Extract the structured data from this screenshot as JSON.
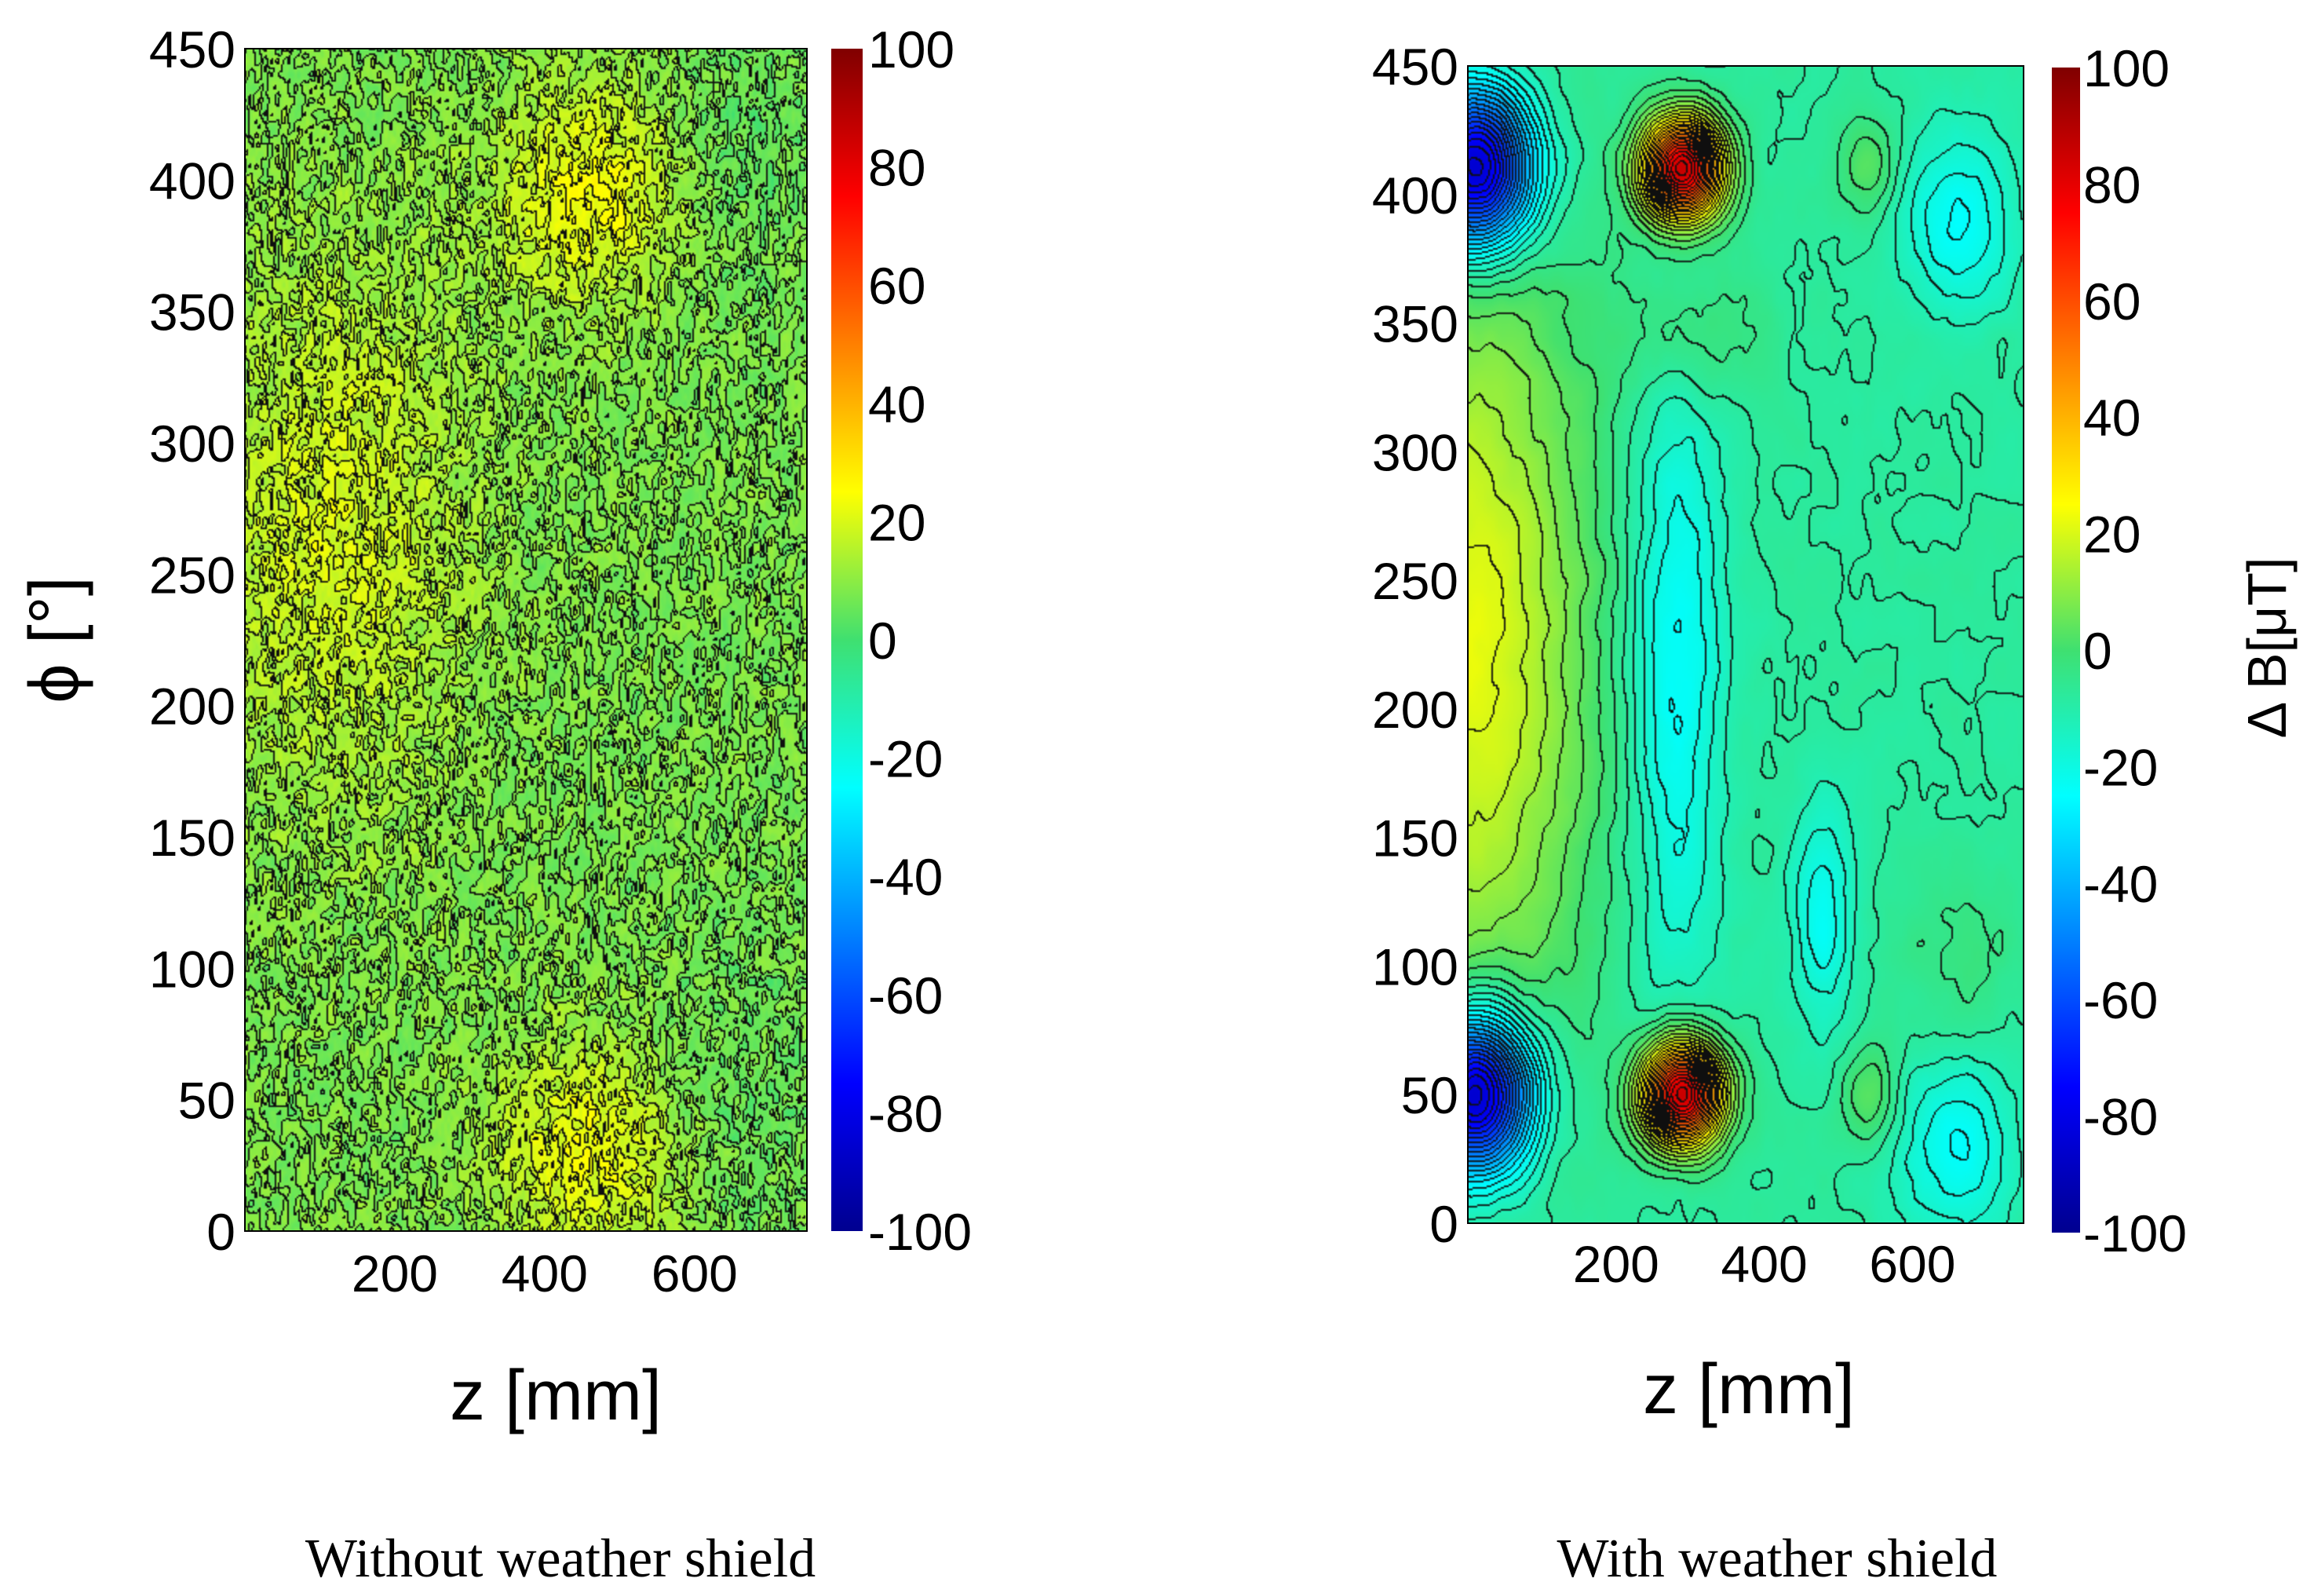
{
  "figure": {
    "captions": [
      "Without weather shield",
      "With weather shield"
    ]
  },
  "chart_data": [
    {
      "type": "heatmap",
      "title": "",
      "caption": "Without weather shield",
      "xlabel": "z [mm]",
      "ylabel": "ϕ [°]",
      "xlim": [
        0,
        750
      ],
      "ylim": [
        0,
        450
      ],
      "xticks": [
        200,
        400,
        600
      ],
      "yticks": [
        0,
        50,
        100,
        150,
        200,
        250,
        300,
        350,
        400,
        450
      ],
      "colorbar": {
        "label": "",
        "range": [
          -100,
          100
        ],
        "ticks": [
          100,
          80,
          60,
          40,
          20,
          0,
          -20,
          -40,
          -60,
          -80,
          -100
        ]
      },
      "base_value": 8,
      "noise": "dense",
      "features": [
        {
          "z": 460,
          "phi": 395,
          "value": 16,
          "sz": 90,
          "sphi": 30
        },
        {
          "z": 460,
          "phi": 30,
          "value": 15,
          "sz": 90,
          "sphi": 30
        },
        {
          "z": 120,
          "phi": 270,
          "value": 12,
          "sz": 120,
          "sphi": 70
        },
        {
          "z": 650,
          "phi": 410,
          "value": -4,
          "sz": 70,
          "sphi": 40
        },
        {
          "z": 650,
          "phi": 50,
          "value": -4,
          "sz": 70,
          "sphi": 40
        }
      ]
    },
    {
      "type": "heatmap",
      "title": "",
      "caption": "With weather shield",
      "xlabel": "z [mm]",
      "ylabel": "",
      "xlim": [
        0,
        750
      ],
      "ylim": [
        0,
        450
      ],
      "xticks": [
        200,
        400,
        600
      ],
      "yticks": [
        0,
        50,
        100,
        150,
        200,
        250,
        300,
        350,
        400,
        450
      ],
      "colorbar": {
        "label": "Δ B[μT]",
        "range": [
          -100,
          100
        ],
        "ticks": [
          100,
          80,
          60,
          40,
          20,
          0,
          -20,
          -40,
          -60,
          -80,
          -100
        ]
      },
      "base_value": -8,
      "noise": "light",
      "features": [
        {
          "z": 290,
          "phi": 410,
          "value": 95,
          "sz": 38,
          "sphi": 14
        },
        {
          "z": 290,
          "phi": 50,
          "value": 95,
          "sz": 38,
          "sphi": 14
        },
        {
          "z": 10,
          "phi": 410,
          "value": -85,
          "sz": 55,
          "sphi": 22
        },
        {
          "z": 10,
          "phi": 50,
          "value": -85,
          "sz": 55,
          "sphi": 22
        },
        {
          "z": 0,
          "phi": 225,
          "value": 30,
          "sz": 120,
          "sphi": 110
        },
        {
          "z": 280,
          "phi": 215,
          "value": -18,
          "sz": 45,
          "sphi": 85
        },
        {
          "z": 300,
          "phi": 345,
          "value": 9,
          "sz": 65,
          "sphi": 18
        },
        {
          "z": 540,
          "phi": 410,
          "value": 12,
          "sz": 28,
          "sphi": 14
        },
        {
          "z": 540,
          "phi": 50,
          "value": 12,
          "sz": 28,
          "sphi": 14
        },
        {
          "z": 660,
          "phi": 390,
          "value": -16,
          "sz": 55,
          "sphi": 25
        },
        {
          "z": 660,
          "phi": 30,
          "value": -16,
          "sz": 55,
          "sphi": 25
        },
        {
          "z": 660,
          "phi": 100,
          "value": 5,
          "sz": 60,
          "sphi": 25
        },
        {
          "z": 480,
          "phi": 120,
          "value": -15,
          "sz": 30,
          "sphi": 30
        }
      ]
    }
  ]
}
